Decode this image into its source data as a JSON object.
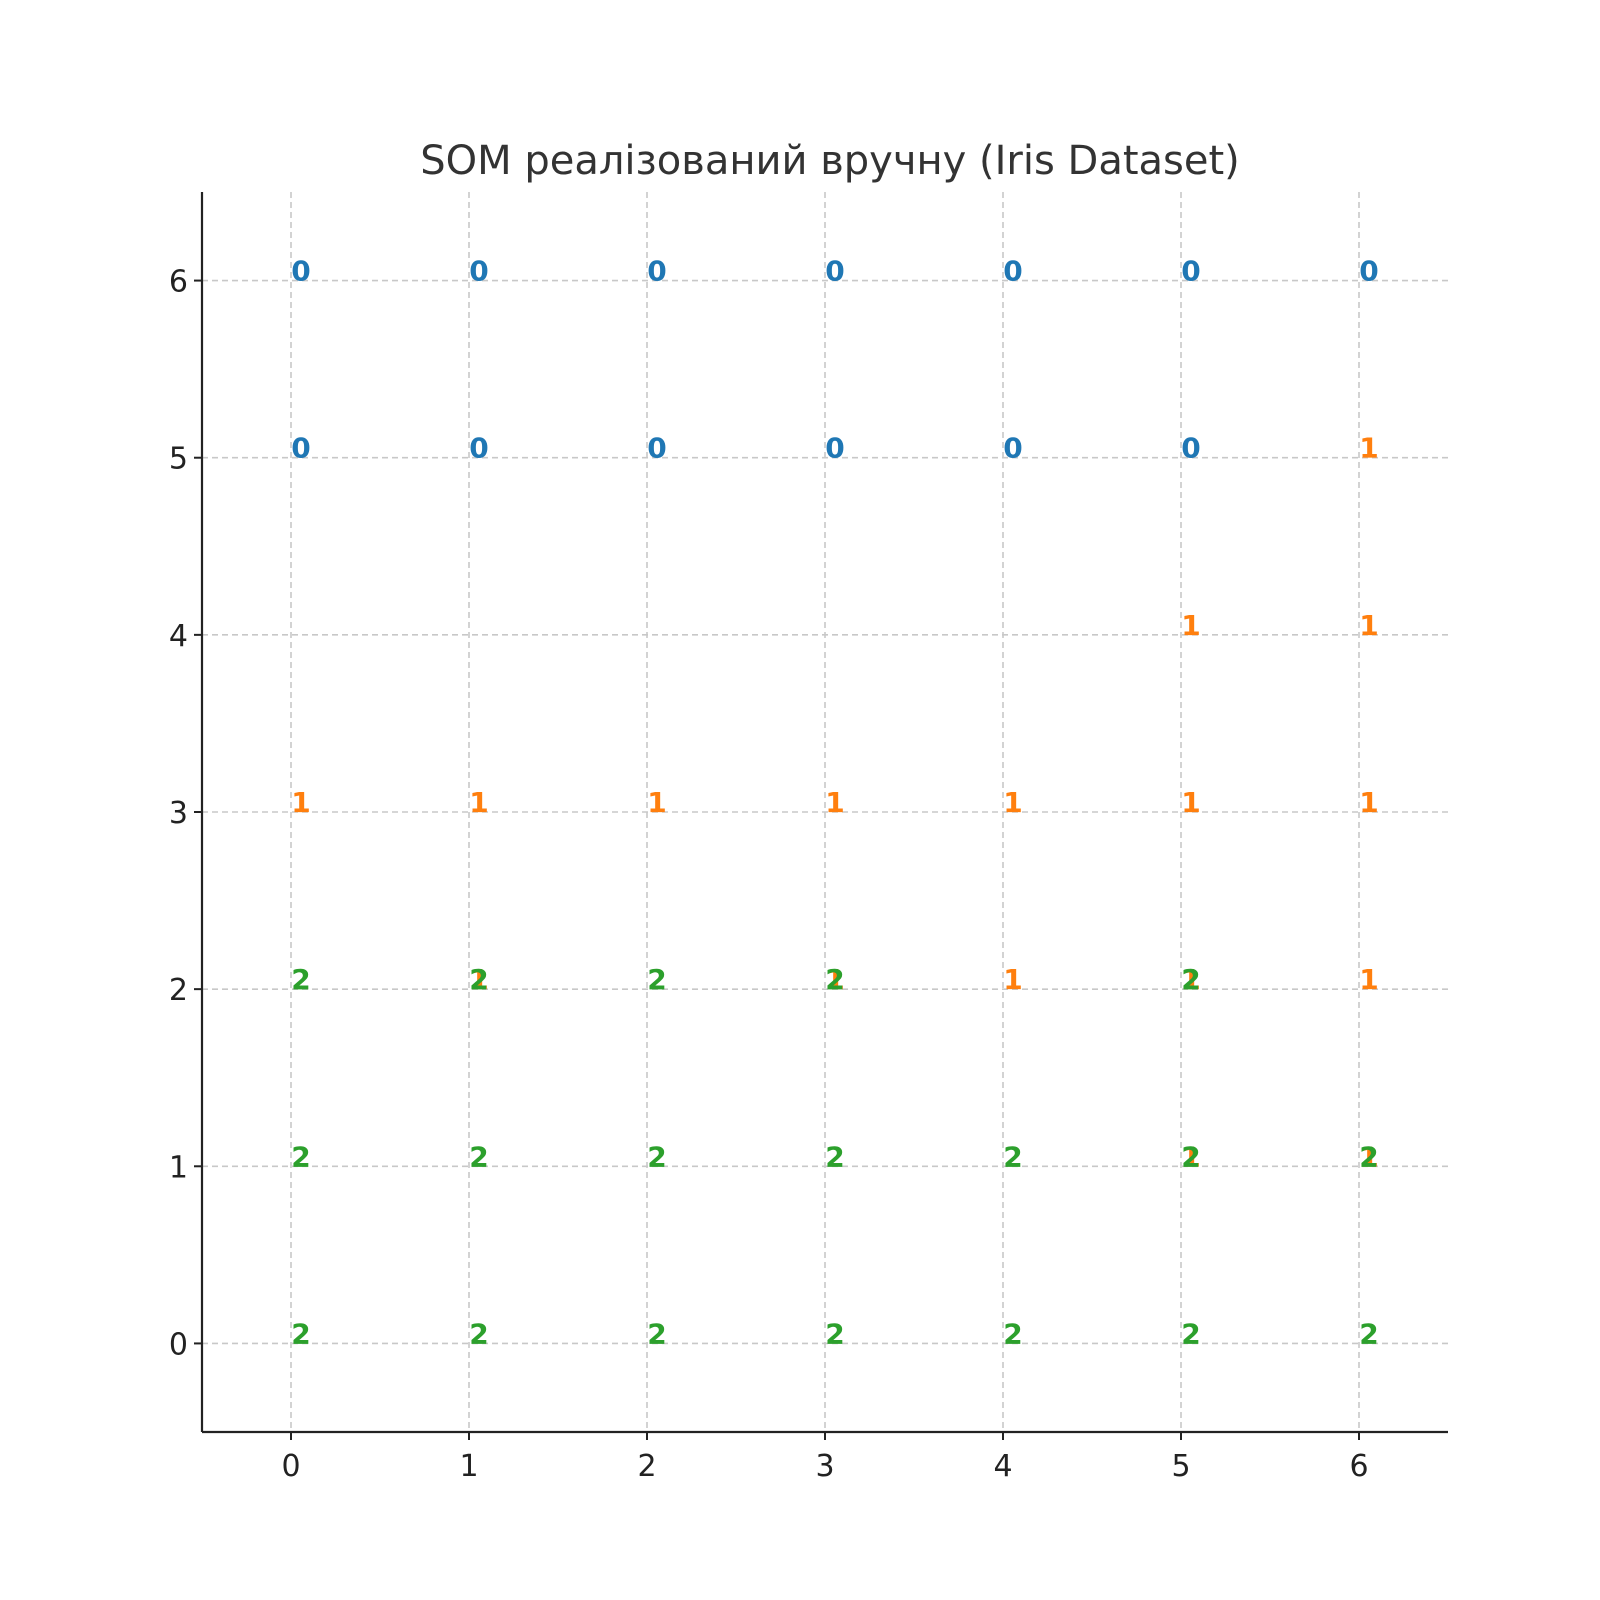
{
  "chart_data": {
    "type": "scatter",
    "title": "SOM реалізований вручну (Iris Dataset)",
    "xlabel": "",
    "ylabel": "",
    "xlim": [
      -0.5,
      6.5
    ],
    "ylim": [
      -0.5,
      6.5
    ],
    "x_ticks": [
      "0",
      "1",
      "2",
      "3",
      "4",
      "5",
      "6"
    ],
    "y_ticks": [
      "0",
      "1",
      "2",
      "3",
      "4",
      "5",
      "6"
    ],
    "grid": true,
    "class_colors": {
      "0": "#1f77b4",
      "1": "#ff7f0e",
      "2": "#2ca02c"
    },
    "points": [
      {
        "x": 0,
        "y": 6,
        "label": "0"
      },
      {
        "x": 1,
        "y": 6,
        "label": "0"
      },
      {
        "x": 2,
        "y": 6,
        "label": "0"
      },
      {
        "x": 3,
        "y": 6,
        "label": "0"
      },
      {
        "x": 4,
        "y": 6,
        "label": "0"
      },
      {
        "x": 5,
        "y": 6,
        "label": "0"
      },
      {
        "x": 6,
        "y": 6,
        "label": "0"
      },
      {
        "x": 0,
        "y": 5,
        "label": "0"
      },
      {
        "x": 1,
        "y": 5,
        "label": "0"
      },
      {
        "x": 2,
        "y": 5,
        "label": "0"
      },
      {
        "x": 3,
        "y": 5,
        "label": "0"
      },
      {
        "x": 4,
        "y": 5,
        "label": "0"
      },
      {
        "x": 5,
        "y": 5,
        "label": "0"
      },
      {
        "x": 6,
        "y": 5,
        "label": "1"
      },
      {
        "x": 5,
        "y": 4,
        "label": "1"
      },
      {
        "x": 6,
        "y": 4,
        "label": "1"
      },
      {
        "x": 0,
        "y": 3,
        "label": "1"
      },
      {
        "x": 1,
        "y": 3,
        "label": "1"
      },
      {
        "x": 2,
        "y": 3,
        "label": "1"
      },
      {
        "x": 3,
        "y": 3,
        "label": "1"
      },
      {
        "x": 4,
        "y": 3,
        "label": "1"
      },
      {
        "x": 5,
        "y": 3,
        "label": "1"
      },
      {
        "x": 6,
        "y": 3,
        "label": "1"
      },
      {
        "x": 0,
        "y": 2,
        "label": "2"
      },
      {
        "x": 1,
        "y": 2,
        "label": "1"
      },
      {
        "x": 1,
        "y": 2,
        "label": "2"
      },
      {
        "x": 2,
        "y": 2,
        "label": "2"
      },
      {
        "x": 3,
        "y": 2,
        "label": "1"
      },
      {
        "x": 3,
        "y": 2,
        "label": "2"
      },
      {
        "x": 4,
        "y": 2,
        "label": "1"
      },
      {
        "x": 5,
        "y": 2,
        "label": "1"
      },
      {
        "x": 5,
        "y": 2,
        "label": "2"
      },
      {
        "x": 6,
        "y": 2,
        "label": "1"
      },
      {
        "x": 0,
        "y": 1,
        "label": "2"
      },
      {
        "x": 1,
        "y": 1,
        "label": "2"
      },
      {
        "x": 2,
        "y": 1,
        "label": "2"
      },
      {
        "x": 3,
        "y": 1,
        "label": "2"
      },
      {
        "x": 4,
        "y": 1,
        "label": "2"
      },
      {
        "x": 5,
        "y": 1,
        "label": "1"
      },
      {
        "x": 5,
        "y": 1,
        "label": "2"
      },
      {
        "x": 6,
        "y": 1,
        "label": "1"
      },
      {
        "x": 6,
        "y": 1,
        "label": "2"
      },
      {
        "x": 0,
        "y": 0,
        "label": "2"
      },
      {
        "x": 1,
        "y": 0,
        "label": "2"
      },
      {
        "x": 2,
        "y": 0,
        "label": "2"
      },
      {
        "x": 3,
        "y": 0,
        "label": "2"
      },
      {
        "x": 4,
        "y": 0,
        "label": "2"
      },
      {
        "x": 5,
        "y": 0,
        "label": "2"
      },
      {
        "x": 6,
        "y": 0,
        "label": "2"
      }
    ]
  }
}
